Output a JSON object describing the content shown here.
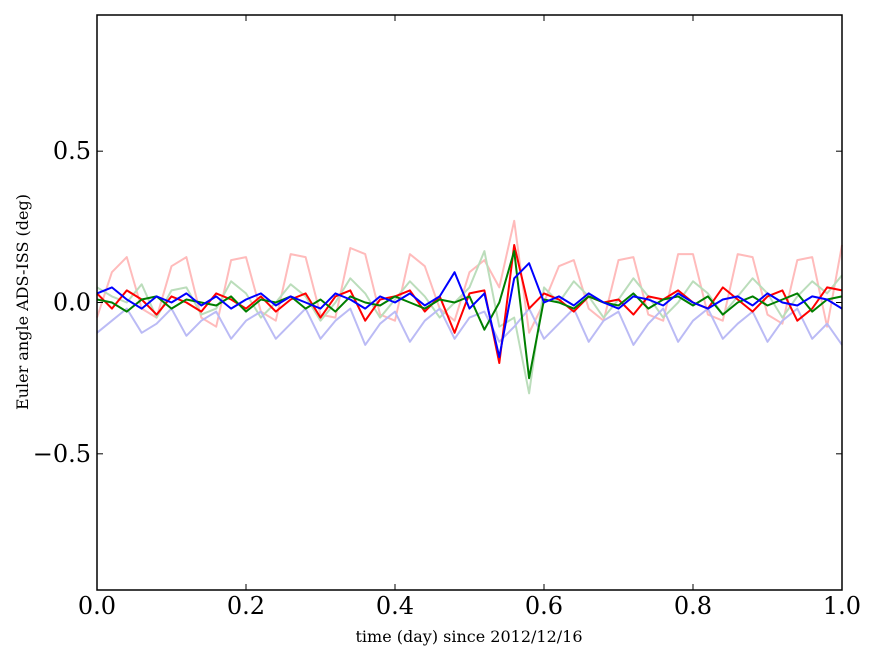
{
  "chart_data": {
    "type": "line",
    "title": "",
    "xlabel": "time (day) since 2012/12/16",
    "ylabel": "Euler angle ADS-ISS (deg)",
    "xlim": [
      0.0,
      1.0
    ],
    "ylim": [
      -0.95,
      0.95
    ],
    "grid": false,
    "x_ticks": [
      0.0,
      0.2,
      0.4,
      0.6,
      0.8,
      1.0
    ],
    "x_tick_labels": [
      "0.0",
      "0.2",
      "0.4",
      "0.6",
      "0.8",
      "1.0"
    ],
    "y_ticks": [
      0.5,
      0.0,
      -0.5
    ],
    "y_tick_labels": [
      "0.5",
      "0.0",
      "−0.5"
    ],
    "x": [
      0.0,
      0.02,
      0.04,
      0.06,
      0.08,
      0.1,
      0.12,
      0.14,
      0.16,
      0.18,
      0.2,
      0.22,
      0.24,
      0.26,
      0.28,
      0.3,
      0.32,
      0.34,
      0.36,
      0.38,
      0.4,
      0.42,
      0.44,
      0.46,
      0.48,
      0.5,
      0.52,
      0.54,
      0.56,
      0.58,
      0.6,
      0.62,
      0.64,
      0.66,
      0.68,
      0.7,
      0.72,
      0.74,
      0.76,
      0.78,
      0.8,
      0.82,
      0.84,
      0.86,
      0.88,
      0.9,
      0.92,
      0.94,
      0.96,
      0.98,
      1.0
    ],
    "series": [
      {
        "color": "#ffbbbb",
        "values": [
          -0.05,
          0.1,
          0.15,
          -0.02,
          -0.05,
          0.12,
          0.15,
          -0.05,
          -0.08,
          0.14,
          0.15,
          -0.03,
          -0.06,
          0.16,
          0.15,
          -0.04,
          -0.05,
          0.18,
          0.16,
          -0.04,
          -0.06,
          0.16,
          0.12,
          -0.02,
          -0.06,
          0.1,
          0.14,
          0.05,
          0.27,
          -0.1,
          0.0,
          0.12,
          0.14,
          -0.02,
          -0.06,
          0.14,
          0.15,
          -0.04,
          -0.06,
          0.16,
          0.16,
          -0.04,
          -0.06,
          0.16,
          0.15,
          -0.04,
          -0.07,
          0.14,
          0.15,
          -0.08,
          0.19
        ]
      },
      {
        "color": "#bbddbb",
        "values": [
          0.05,
          0.02,
          0.0,
          0.06,
          -0.05,
          0.04,
          0.05,
          -0.04,
          -0.02,
          0.07,
          0.03,
          -0.05,
          0.0,
          0.06,
          0.02,
          -0.06,
          0.0,
          0.08,
          0.03,
          -0.05,
          0.01,
          0.07,
          0.02,
          -0.05,
          0.0,
          0.05,
          0.17,
          -0.08,
          -0.05,
          -0.3,
          0.05,
          0.0,
          0.07,
          0.02,
          -0.05,
          0.01,
          0.08,
          0.02,
          -0.05,
          0.0,
          0.07,
          0.03,
          -0.04,
          0.02,
          0.08,
          0.03,
          -0.05,
          0.02,
          0.07,
          0.03,
          0.09
        ]
      },
      {
        "color": "#bbbbf5",
        "values": [
          -0.1,
          -0.06,
          -0.02,
          -0.1,
          -0.07,
          -0.02,
          -0.11,
          -0.06,
          -0.03,
          -0.12,
          -0.06,
          -0.03,
          -0.12,
          -0.07,
          -0.02,
          -0.12,
          -0.06,
          -0.02,
          -0.14,
          -0.07,
          -0.03,
          -0.13,
          -0.06,
          -0.02,
          -0.12,
          -0.05,
          -0.03,
          -0.13,
          -0.08,
          -0.02,
          -0.12,
          -0.07,
          -0.02,
          -0.13,
          -0.06,
          -0.03,
          -0.14,
          -0.07,
          -0.02,
          -0.13,
          -0.06,
          -0.02,
          -0.12,
          -0.07,
          -0.03,
          -0.13,
          -0.06,
          -0.02,
          -0.12,
          -0.07,
          -0.14
        ]
      },
      {
        "color": "#ff0000",
        "values": [
          0.03,
          -0.02,
          0.04,
          0.01,
          -0.04,
          0.02,
          0.0,
          -0.03,
          0.03,
          0.01,
          -0.02,
          0.02,
          -0.03,
          0.01,
          0.03,
          -0.05,
          0.02,
          0.04,
          -0.06,
          0.01,
          0.02,
          0.04,
          -0.03,
          0.02,
          -0.1,
          0.03,
          0.04,
          -0.2,
          0.19,
          -0.02,
          0.03,
          0.01,
          -0.03,
          0.02,
          0.0,
          0.01,
          -0.04,
          0.02,
          0.01,
          0.04,
          0.0,
          -0.02,
          0.05,
          0.01,
          -0.03,
          0.02,
          0.04,
          -0.06,
          -0.02,
          0.05,
          0.04
        ]
      },
      {
        "color": "#007f00",
        "values": [
          0.01,
          0.0,
          -0.03,
          0.01,
          0.02,
          -0.02,
          0.01,
          0.0,
          -0.01,
          0.02,
          -0.03,
          0.01,
          0.0,
          0.02,
          -0.02,
          0.01,
          -0.03,
          0.02,
          0.0,
          -0.01,
          0.02,
          0.0,
          -0.02,
          0.01,
          0.0,
          0.02,
          -0.09,
          0.0,
          0.17,
          -0.25,
          0.01,
          0.0,
          -0.02,
          0.02,
          0.0,
          -0.01,
          0.03,
          -0.02,
          0.01,
          0.02,
          -0.01,
          0.02,
          -0.04,
          0.0,
          0.02,
          -0.01,
          0.01,
          0.03,
          -0.03,
          0.01,
          0.02
        ]
      },
      {
        "color": "#0000ff",
        "values": [
          0.03,
          0.05,
          0.01,
          -0.02,
          0.02,
          0.0,
          0.03,
          -0.01,
          0.02,
          -0.02,
          0.01,
          0.03,
          -0.01,
          0.02,
          0.0,
          -0.02,
          0.03,
          0.01,
          -0.02,
          0.02,
          0.0,
          0.03,
          -0.01,
          0.02,
          0.1,
          -0.02,
          0.03,
          -0.18,
          0.08,
          0.13,
          0.0,
          0.02,
          -0.01,
          0.03,
          0.0,
          -0.02,
          0.02,
          0.01,
          -0.01,
          0.03,
          0.0,
          -0.02,
          0.01,
          0.02,
          -0.01,
          0.03,
          0.0,
          -0.01,
          0.02,
          0.01,
          -0.02
        ]
      }
    ]
  }
}
